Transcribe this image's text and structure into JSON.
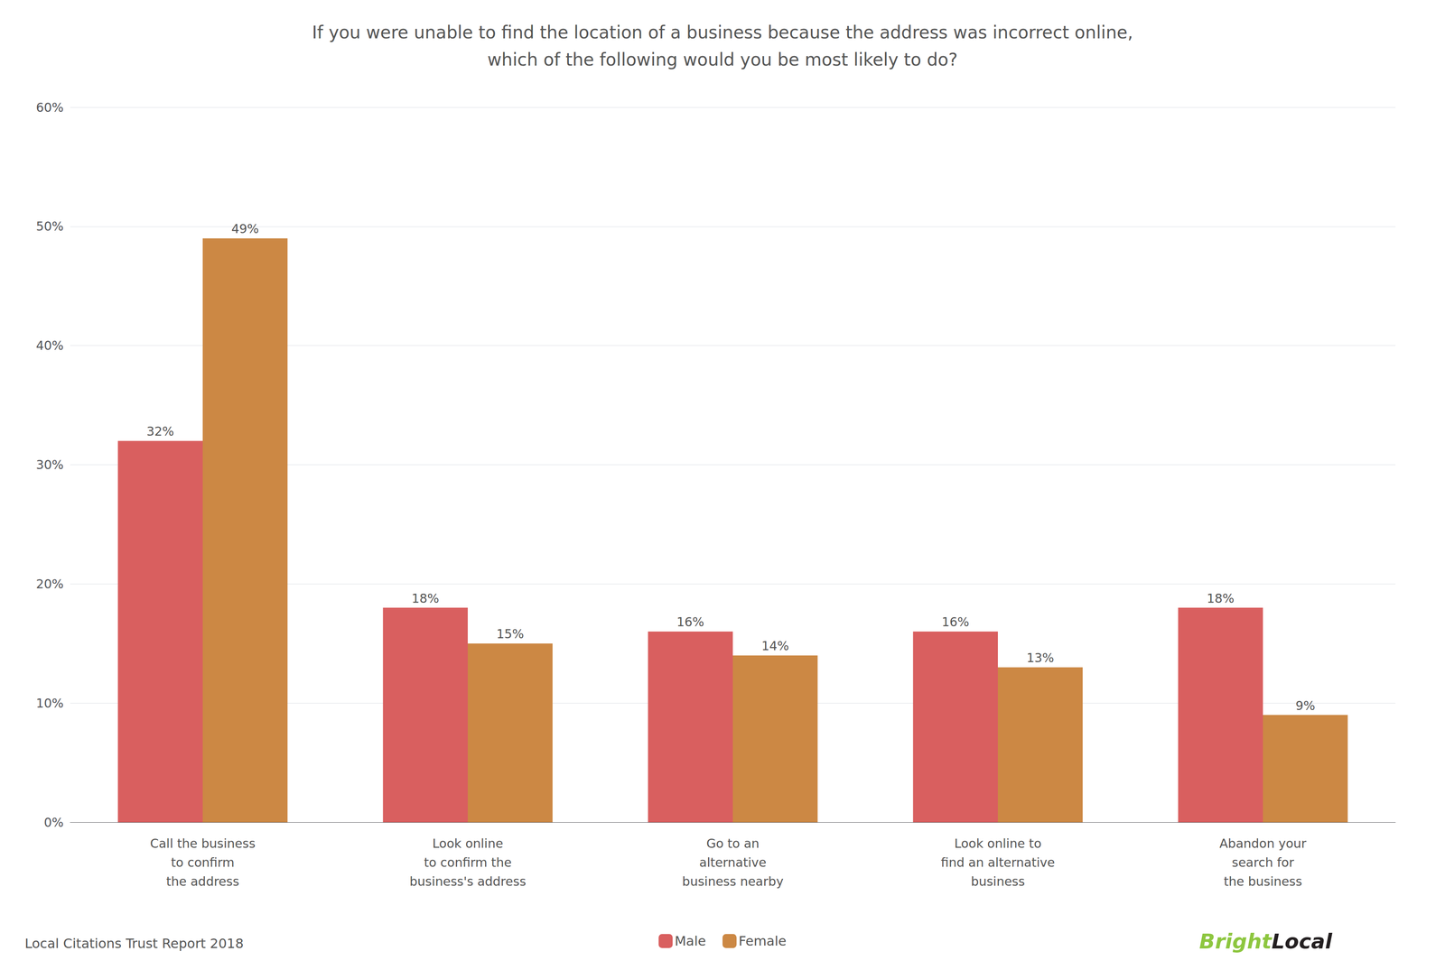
{
  "chart_data": {
    "type": "bar",
    "title": "If you were unable to find the location of a business because the address was incorrect online,\nwhich of the following would you be most likely to do?",
    "categories": [
      "Call the business\nto confirm\nthe address",
      "Look online\nto confirm the\nbusiness's address",
      "Go to an\nalternative\nbusiness nearby",
      "Look online to\nfind an alternative\nbusiness",
      "Abandon your\nsearch for\nthe business"
    ],
    "series": [
      {
        "name": "Male",
        "color": "#d95f5f",
        "values": [
          32,
          18,
          16,
          16,
          18
        ],
        "value_labels": [
          "32%",
          "18%",
          "16%",
          "16%",
          "18%"
        ]
      },
      {
        "name": "Female",
        "color": "#cc8844",
        "values": [
          49,
          15,
          14,
          13,
          9
        ],
        "value_labels": [
          "49%",
          "15%",
          "14%",
          "13%",
          "9%"
        ]
      }
    ],
    "ylim": [
      0,
      60
    ],
    "yticks": [
      {
        "value": 0,
        "label": "0%"
      },
      {
        "value": 10,
        "label": "10%"
      },
      {
        "value": 20,
        "label": "20%"
      },
      {
        "value": 30,
        "label": "30%"
      },
      {
        "value": 40,
        "label": "40%"
      },
      {
        "value": 50,
        "label": "50%"
      },
      {
        "value": 60,
        "label": "60%"
      }
    ],
    "grid": true,
    "legend": "bottom",
    "data_labels": true,
    "annotations": [
      {
        "text": "Local Citations Trust Report 2018"
      },
      {
        "text": "Bright",
        "color": "#8dc63f"
      },
      {
        "text": "Local",
        "color": "#231f20"
      }
    ]
  }
}
